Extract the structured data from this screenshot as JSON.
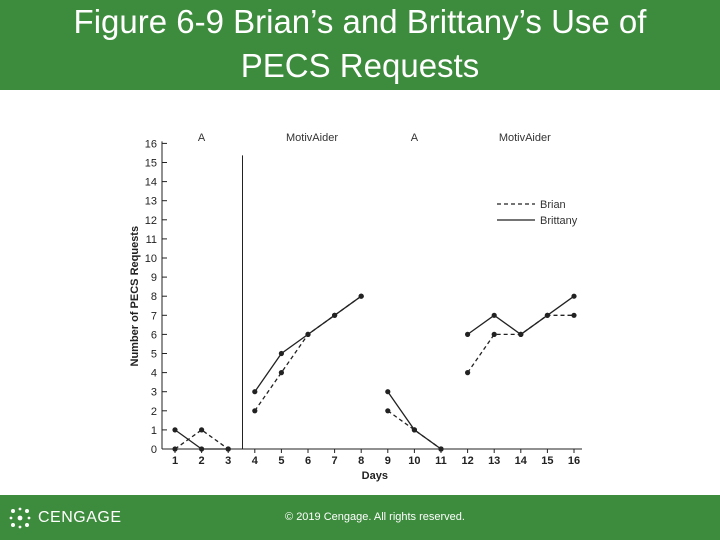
{
  "slide": {
    "title_line1": "Figure 6-9 Brian’s and Brittany’s Use of",
    "title_line2": "PECS Requests"
  },
  "footer": {
    "brand": "CENGAGE",
    "copyright": "© 2019 Cengage. All rights reserved.",
    "bar_color": "#3d8b3d"
  },
  "chart_data": {
    "type": "line",
    "xlabel": "Days",
    "ylabel": "Number of PECS Requests",
    "ylim": [
      0,
      16
    ],
    "yticks": [
      0,
      1,
      2,
      3,
      4,
      5,
      6,
      7,
      8,
      9,
      10,
      11,
      12,
      13,
      14,
      15,
      16
    ],
    "xticks": [
      "1",
      "2",
      "3",
      "4",
      "5",
      "6",
      "7",
      "8",
      "9",
      "10",
      "11",
      "12",
      "13",
      "14",
      "15",
      "16"
    ],
    "phases": [
      {
        "label": "A",
        "days": [
          1,
          3
        ]
      },
      {
        "label": "MotivAider",
        "days": [
          4,
          8
        ]
      },
      {
        "label": "A",
        "days": [
          9,
          11
        ]
      },
      {
        "label": "MotivAider",
        "days": [
          12,
          16
        ]
      }
    ],
    "phase_change_after_day": 3,
    "legend_position": "top-right",
    "series": [
      {
        "name": "Brian",
        "style": "dashed",
        "segments": [
          [
            [
              1,
              0
            ],
            [
              2,
              1
            ],
            [
              3,
              0
            ]
          ],
          [
            [
              4,
              2
            ],
            [
              5,
              4
            ],
            [
              6,
              6
            ],
            [
              7,
              7
            ],
            [
              8,
              8
            ]
          ],
          [
            [
              9,
              2
            ],
            [
              10,
              1
            ],
            [
              11,
              0
            ]
          ],
          [
            [
              12,
              4
            ],
            [
              13,
              6
            ],
            [
              14,
              6
            ],
            [
              15,
              7
            ],
            [
              16,
              7
            ]
          ]
        ]
      },
      {
        "name": "Brittany",
        "style": "solid",
        "segments": [
          [
            [
              1,
              1
            ],
            [
              2,
              0
            ],
            [
              3,
              0
            ]
          ],
          [
            [
              4,
              3
            ],
            [
              5,
              5
            ],
            [
              6,
              6
            ],
            [
              7,
              7
            ],
            [
              8,
              8
            ]
          ],
          [
            [
              9,
              3
            ],
            [
              10,
              1
            ],
            [
              11,
              0
            ]
          ],
          [
            [
              12,
              6
            ],
            [
              13,
              7
            ],
            [
              14,
              6
            ],
            [
              15,
              7
            ],
            [
              16,
              8
            ]
          ]
        ]
      }
    ]
  }
}
